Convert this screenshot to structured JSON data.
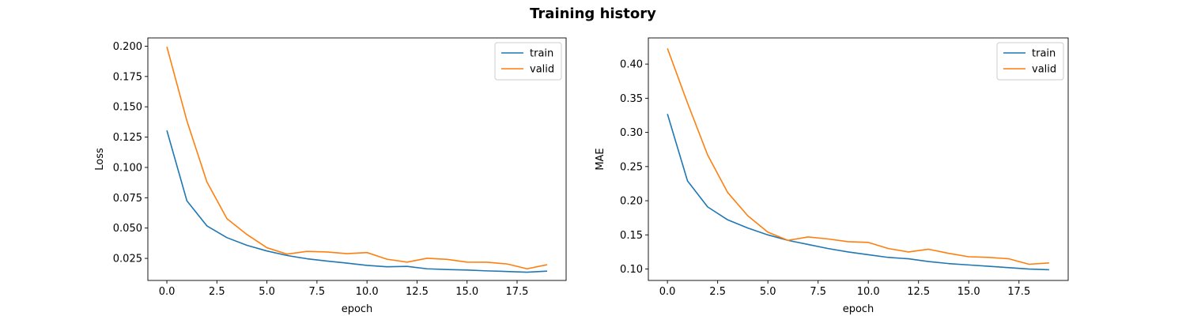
{
  "figure": {
    "title": "Training history"
  },
  "colors": {
    "train": "#1f77b4",
    "valid": "#ff7f0e"
  },
  "chart_data": [
    {
      "type": "line",
      "xlabel": "epoch",
      "ylabel": "Loss",
      "xlim": [
        -0.95,
        19.95
      ],
      "ylim": [
        0.0068,
        0.2068
      ],
      "xticks": [
        0.0,
        2.5,
        5.0,
        7.5,
        10.0,
        12.5,
        15.0,
        17.5
      ],
      "xtick_labels": [
        "0.0",
        "2.5",
        "5.0",
        "7.5",
        "10.0",
        "12.5",
        "15.0",
        "17.5"
      ],
      "yticks": [
        0.025,
        0.05,
        0.075,
        0.1,
        0.125,
        0.15,
        0.175,
        0.2
      ],
      "ytick_labels": [
        "0.025",
        "0.050",
        "0.075",
        "0.100",
        "0.125",
        "0.150",
        "0.175",
        "0.200"
      ],
      "grid": false,
      "legend_position": "top-right",
      "x": [
        0,
        1,
        2,
        3,
        4,
        5,
        6,
        7,
        8,
        9,
        10,
        11,
        12,
        13,
        14,
        15,
        16,
        17,
        18,
        19
      ],
      "series": [
        {
          "name": "train",
          "values": [
            0.1305,
            0.0725,
            0.0518,
            0.0421,
            0.0358,
            0.0311,
            0.0274,
            0.0247,
            0.0228,
            0.0211,
            0.0192,
            0.0181,
            0.0184,
            0.0164,
            0.0158,
            0.0154,
            0.0147,
            0.0142,
            0.0136,
            0.0145
          ]
        },
        {
          "name": "valid",
          "values": [
            0.1995,
            0.1385,
            0.0881,
            0.0578,
            0.0447,
            0.0338,
            0.0285,
            0.0308,
            0.0303,
            0.0289,
            0.0298,
            0.0243,
            0.0219,
            0.0251,
            0.0242,
            0.0219,
            0.0218,
            0.0204,
            0.0164,
            0.0198
          ]
        }
      ]
    },
    {
      "type": "line",
      "xlabel": "epoch",
      "ylabel": "MAE",
      "xlim": [
        -0.95,
        19.95
      ],
      "ylim": [
        0.0833,
        0.4383
      ],
      "xticks": [
        0.0,
        2.5,
        5.0,
        7.5,
        10.0,
        12.5,
        15.0,
        17.5
      ],
      "xtick_labels": [
        "0.0",
        "2.5",
        "5.0",
        "7.5",
        "10.0",
        "12.5",
        "15.0",
        "17.5"
      ],
      "yticks": [
        0.1,
        0.15,
        0.2,
        0.25,
        0.3,
        0.35,
        0.4
      ],
      "ytick_labels": [
        "0.10",
        "0.15",
        "0.20",
        "0.25",
        "0.30",
        "0.35",
        "0.40"
      ],
      "grid": false,
      "legend_position": "top-right",
      "x": [
        0,
        1,
        2,
        3,
        4,
        5,
        6,
        7,
        8,
        9,
        10,
        11,
        12,
        13,
        14,
        15,
        16,
        17,
        18,
        19
      ],
      "series": [
        {
          "name": "train",
          "values": [
            0.327,
            0.229,
            0.191,
            0.172,
            0.16,
            0.15,
            0.142,
            0.136,
            0.13,
            0.125,
            0.121,
            0.117,
            0.115,
            0.111,
            0.108,
            0.106,
            0.104,
            0.102,
            0.1,
            0.099
          ]
        },
        {
          "name": "valid",
          "values": [
            0.423,
            0.343,
            0.267,
            0.212,
            0.178,
            0.154,
            0.142,
            0.147,
            0.144,
            0.14,
            0.139,
            0.13,
            0.125,
            0.129,
            0.123,
            0.118,
            0.117,
            0.115,
            0.107,
            0.109
          ]
        }
      ]
    }
  ]
}
